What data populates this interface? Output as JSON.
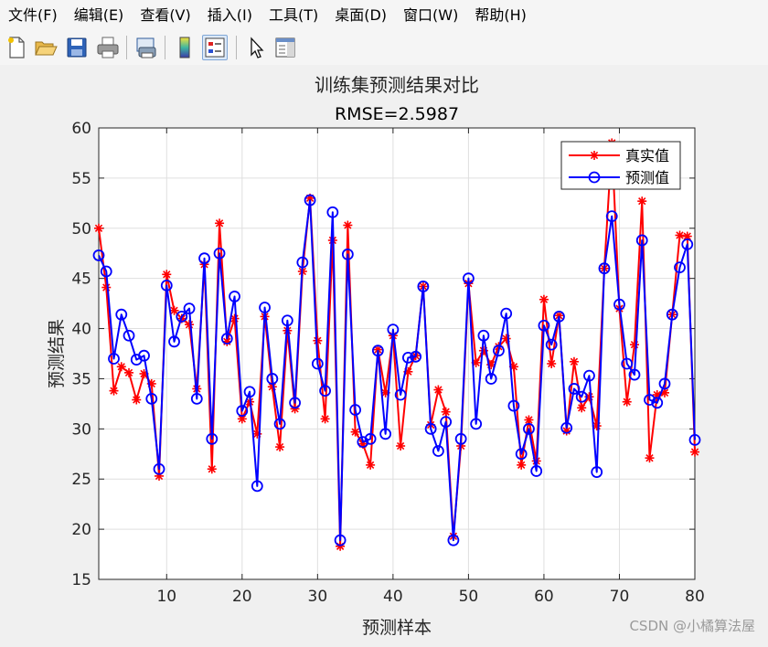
{
  "menu": [
    "文件(F)",
    "编辑(E)",
    "查看(V)",
    "插入(I)",
    "工具(T)",
    "桌面(D)",
    "窗口(W)",
    "帮助(H)"
  ],
  "toolbar": {
    "icons": [
      "new-file-icon",
      "open-folder-icon",
      "save-icon",
      "print-icon",
      "print-preview-icon",
      "colorbar-icon",
      "legend-icon",
      "pointer-icon",
      "property-editor-icon"
    ],
    "active": "legend-icon"
  },
  "watermark": "CSDN @小橘算法屋",
  "chart_data": {
    "type": "line",
    "title": "训练集预测结果对比",
    "subtitle": "RMSE=2.5987",
    "xlabel": "预测样本",
    "ylabel": "预测结果",
    "xlim": [
      1,
      80
    ],
    "ylim": [
      15,
      60
    ],
    "xticks": [
      10,
      20,
      30,
      40,
      50,
      60,
      70,
      80
    ],
    "yticks": [
      15,
      20,
      25,
      30,
      35,
      40,
      45,
      50,
      55,
      60
    ],
    "grid": true,
    "legend_position": "top-right",
    "x": [
      1,
      2,
      3,
      4,
      5,
      6,
      7,
      8,
      9,
      10,
      11,
      12,
      13,
      14,
      15,
      16,
      17,
      18,
      19,
      20,
      21,
      22,
      23,
      24,
      25,
      26,
      27,
      28,
      29,
      30,
      31,
      32,
      33,
      34,
      35,
      36,
      37,
      38,
      39,
      40,
      41,
      42,
      43,
      44,
      45,
      46,
      47,
      48,
      49,
      50,
      51,
      52,
      53,
      54,
      55,
      56,
      57,
      58,
      59,
      60,
      61,
      62,
      63,
      64,
      65,
      66,
      67,
      68,
      69,
      70,
      71,
      72,
      73,
      74,
      75,
      76,
      77,
      78,
      79,
      80
    ],
    "series": [
      {
        "name": "真实值",
        "color": "#ff0000",
        "marker": "asterisk",
        "values": [
          50.0,
          44.1,
          33.8,
          36.2,
          35.6,
          32.9,
          35.5,
          34.5,
          25.3,
          45.4,
          41.8,
          41.0,
          40.4,
          34.0,
          46.4,
          26.0,
          50.5,
          38.7,
          41.0,
          31.0,
          32.7,
          29.5,
          41.2,
          34.2,
          28.2,
          39.8,
          32.0,
          45.7,
          53.0,
          38.8,
          31.0,
          48.8,
          18.3,
          50.3,
          29.7,
          28.5,
          26.4,
          37.9,
          33.6,
          39.3,
          28.3,
          35.7,
          37.3,
          44.2,
          30.4,
          33.9,
          31.7,
          19.3,
          28.3,
          44.5,
          36.6,
          37.8,
          36.4,
          38.2,
          39.0,
          36.2,
          26.4,
          30.9,
          26.8,
          42.9,
          36.5,
          41.3,
          29.8,
          36.7,
          32.1,
          33.2,
          30.3,
          46.0,
          58.5,
          42.0,
          32.7,
          38.4,
          52.7,
          27.1,
          33.4,
          33.6,
          41.4,
          49.3,
          49.2,
          27.7
        ]
      },
      {
        "name": "预测值",
        "color": "#0000ff",
        "marker": "circle",
        "values": [
          47.3,
          45.7,
          37.0,
          41.4,
          39.3,
          36.9,
          37.3,
          33.0,
          26.0,
          44.3,
          38.7,
          41.2,
          42.0,
          33.0,
          47.0,
          29.0,
          47.5,
          39.0,
          43.2,
          31.8,
          33.7,
          24.3,
          42.1,
          35.0,
          30.5,
          40.8,
          32.6,
          46.6,
          52.8,
          36.5,
          33.8,
          51.6,
          18.9,
          47.4,
          31.9,
          28.7,
          29.0,
          37.8,
          29.5,
          39.9,
          33.4,
          37.1,
          37.2,
          44.2,
          30.0,
          27.8,
          30.7,
          18.9,
          29.0,
          45.0,
          30.5,
          39.3,
          35.0,
          37.8,
          41.5,
          32.3,
          27.5,
          30.0,
          25.8,
          40.3,
          38.4,
          41.2,
          30.1,
          34.0,
          33.2,
          35.3,
          25.7,
          46.0,
          51.2,
          42.4,
          36.5,
          35.4,
          48.8,
          32.9,
          32.6,
          34.5,
          41.4,
          46.1,
          48.4,
          28.9
        ]
      }
    ]
  }
}
